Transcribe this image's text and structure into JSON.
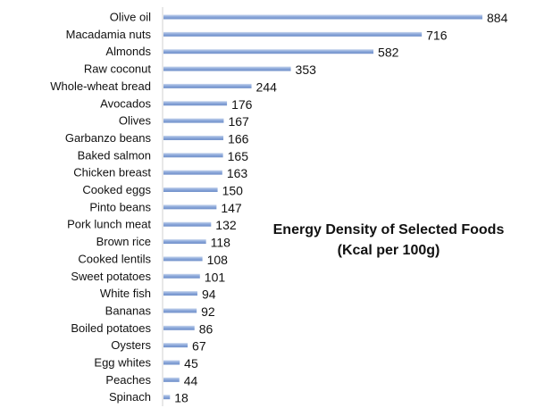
{
  "chart_data": {
    "type": "bar",
    "orientation": "horizontal",
    "title": "Energy Density of Selected Foods",
    "subtitle": "(Kcal per 100g)",
    "categories": [
      "Olive oil",
      "Macadamia nuts",
      "Almonds",
      "Raw coconut",
      "Whole-wheat bread",
      "Avocados",
      "Olives",
      "Garbanzo beans",
      "Baked salmon",
      "Chicken breast",
      "Cooked eggs",
      "Pinto beans",
      "Pork lunch meat",
      "Brown rice",
      "Cooked lentils",
      "Sweet potatoes",
      "White fish",
      "Bananas",
      "Boiled potatoes",
      "Oysters",
      "Egg whites",
      "Peaches",
      "Spinach"
    ],
    "values": [
      884,
      716,
      582,
      353,
      244,
      176,
      167,
      166,
      165,
      163,
      150,
      147,
      132,
      118,
      108,
      101,
      94,
      92,
      86,
      67,
      45,
      44,
      18
    ],
    "xlim": [
      0,
      884
    ],
    "bar_color": "#8eaadb",
    "grid": false,
    "legend": "none"
  }
}
